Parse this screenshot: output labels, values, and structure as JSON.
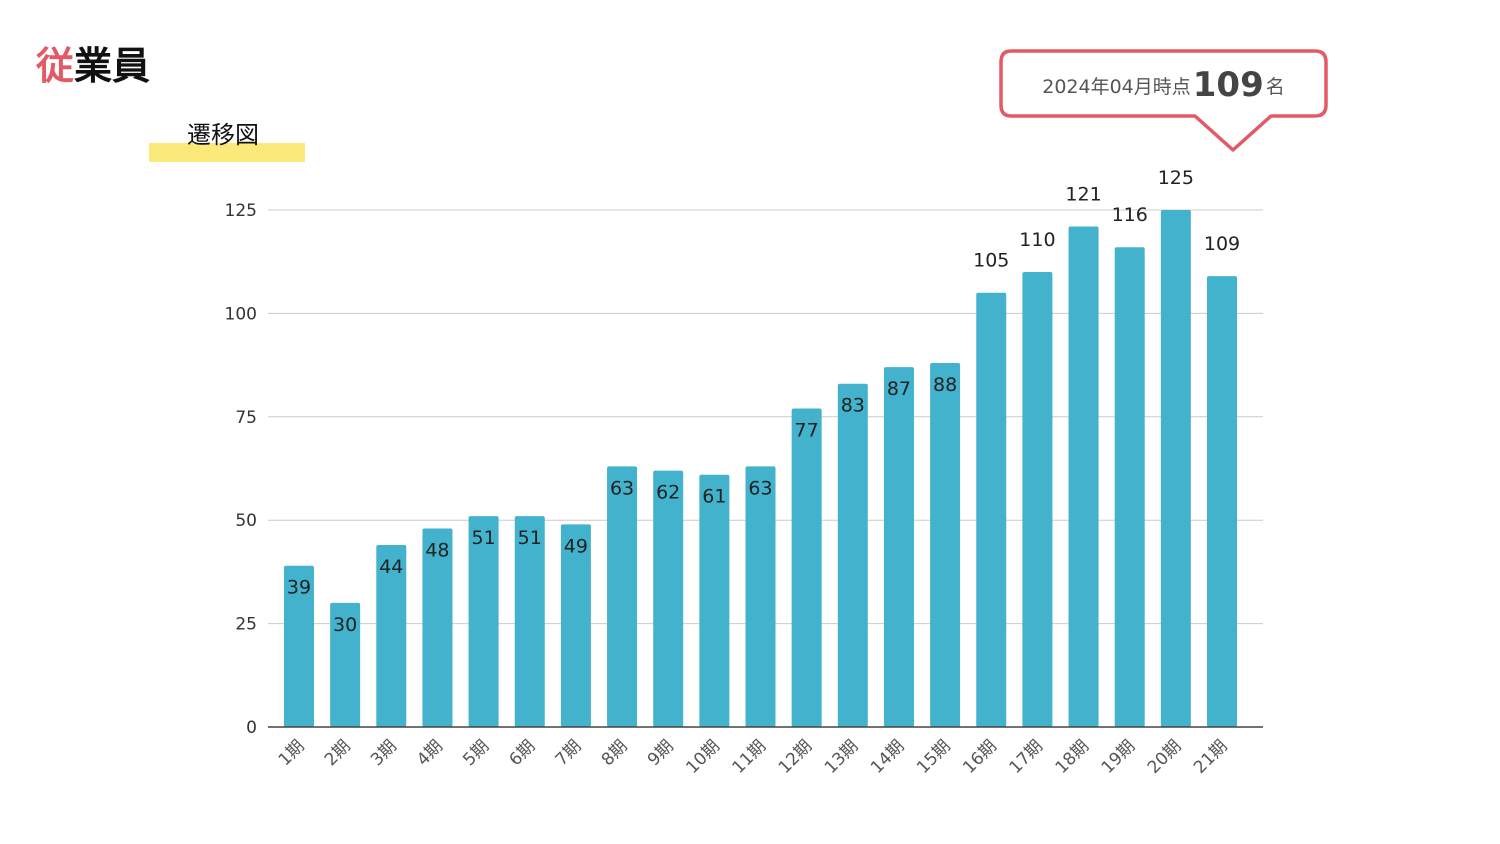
{
  "header": {
    "title_accent": "従",
    "title_rest": "業員",
    "subtitle": "遷移図"
  },
  "callout": {
    "prefix": "2024年04月時点",
    "value": "109",
    "unit": "名",
    "border_color": "#e35a66"
  },
  "chart_data": {
    "type": "bar",
    "categories": [
      "1期",
      "2期",
      "3期",
      "4期",
      "5期",
      "6期",
      "7期",
      "8期",
      "9期",
      "10期",
      "11期",
      "12期",
      "13期",
      "14期",
      "15期",
      "16期",
      "17期",
      "18期",
      "19期",
      "20期",
      "21期"
    ],
    "values": [
      39,
      30,
      44,
      48,
      51,
      51,
      49,
      63,
      62,
      61,
      63,
      77,
      83,
      87,
      88,
      105,
      110,
      121,
      116,
      125,
      109
    ],
    "ylim": [
      0,
      125
    ],
    "yticks": [
      0,
      25,
      50,
      75,
      100,
      125
    ],
    "grid": true,
    "bar_color": "#43b2cc",
    "xlabel": "",
    "ylabel": ""
  }
}
